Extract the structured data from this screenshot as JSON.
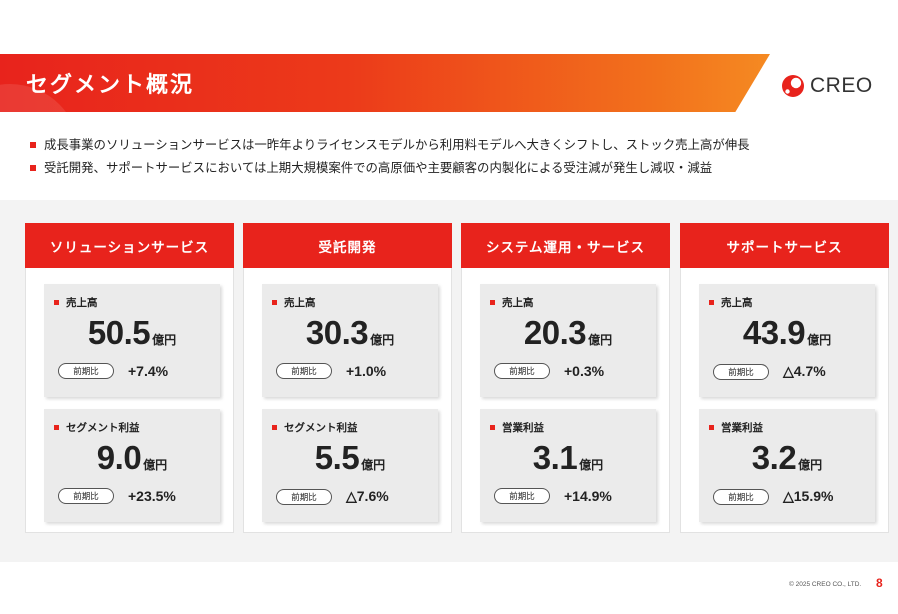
{
  "header": {
    "title": "セグメント概況"
  },
  "logo": {
    "text": "CREO"
  },
  "bullets": [
    "成長事業のソリューションサービスは一昨年よりライセンスモデルから利用料モデルへ大きくシフトし、ストック売上高が伸長",
    "受託開発、サポートサービスにおいては上期大規模案件での高原価や主要顧客の内製化による受注減が発生し減収・減益"
  ],
  "segments": [
    {
      "name": "ソリューションサービス",
      "cards": [
        {
          "label": "売上高",
          "value": "50.5",
          "unit": "億円",
          "yoy_label": "前期比",
          "yoy": "+7.4%"
        },
        {
          "label": "セグメント利益",
          "value": "9.0",
          "unit": "億円",
          "yoy_label": "前期比",
          "yoy": "+23.5%"
        }
      ]
    },
    {
      "name": "受託開発",
      "cards": [
        {
          "label": "売上高",
          "value": "30.3",
          "unit": "億円",
          "yoy_label": "前期比",
          "yoy": "+1.0%"
        },
        {
          "label": "セグメント利益",
          "value": "5.5",
          "unit": "億円",
          "yoy_label": "前期比",
          "yoy": "△7.6%"
        }
      ]
    },
    {
      "name": "システム運用・サービス",
      "cards": [
        {
          "label": "売上高",
          "value": "20.3",
          "unit": "億円",
          "yoy_label": "前期比",
          "yoy": "+0.3%"
        },
        {
          "label": "営業利益",
          "value": "3.1",
          "unit": "億円",
          "yoy_label": "前期比",
          "yoy": "+14.9%"
        }
      ]
    },
    {
      "name": "サポートサービス",
      "cards": [
        {
          "label": "売上高",
          "value": "43.9",
          "unit": "億円",
          "yoy_label": "前期比",
          "yoy": "△4.7%"
        },
        {
          "label": "営業利益",
          "value": "3.2",
          "unit": "億円",
          "yoy_label": "前期比",
          "yoy": "△15.9%"
        }
      ]
    }
  ],
  "footer": {
    "copyright": "© 2025 CREO CO., LTD.",
    "page": "8"
  },
  "colors": {
    "accent": "#e8231c",
    "accent_end": "#f58a22",
    "card_bg": "#ebebeb",
    "panel_bg": "#f3f3f3"
  }
}
